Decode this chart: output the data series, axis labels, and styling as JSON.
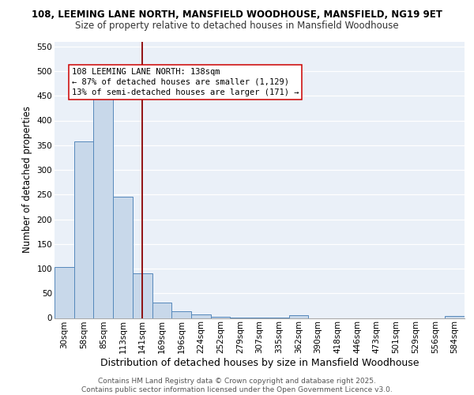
{
  "title1": "108, LEEMING LANE NORTH, MANSFIELD WOODHOUSE, MANSFIELD, NG19 9ET",
  "title2": "Size of property relative to detached houses in Mansfield Woodhouse",
  "xlabel": "Distribution of detached houses by size in Mansfield Woodhouse",
  "ylabel": "Number of detached properties",
  "categories": [
    "30sqm",
    "58sqm",
    "85sqm",
    "113sqm",
    "141sqm",
    "169sqm",
    "196sqm",
    "224sqm",
    "252sqm",
    "279sqm",
    "307sqm",
    "335sqm",
    "362sqm",
    "390sqm",
    "418sqm",
    "446sqm",
    "473sqm",
    "501sqm",
    "529sqm",
    "556sqm",
    "584sqm"
  ],
  "values": [
    103,
    357,
    453,
    246,
    90,
    31,
    14,
    8,
    3,
    1,
    1,
    1,
    5,
    0,
    0,
    0,
    0,
    0,
    0,
    0,
    4
  ],
  "bar_color": "#c8d8ea",
  "bar_edge_color": "#5588bb",
  "bar_width": 1.0,
  "ylim": [
    0,
    560
  ],
  "yticks": [
    0,
    50,
    100,
    150,
    200,
    250,
    300,
    350,
    400,
    450,
    500,
    550
  ],
  "vline_x": 4.0,
  "vline_color": "#8b0000",
  "annotation_text": "108 LEEMING LANE NORTH: 138sqm\n← 87% of detached houses are smaller (1,129)\n13% of semi-detached houses are larger (171) →",
  "bg_color": "#eaf0f8",
  "footer": "Contains HM Land Registry data © Crown copyright and database right 2025.\nContains public sector information licensed under the Open Government Licence v3.0.",
  "title1_fontsize": 8.5,
  "title2_fontsize": 8.5,
  "xlabel_fontsize": 9,
  "ylabel_fontsize": 8.5,
  "tick_fontsize": 7.5,
  "annotation_fontsize": 7.5,
  "footer_fontsize": 6.5
}
